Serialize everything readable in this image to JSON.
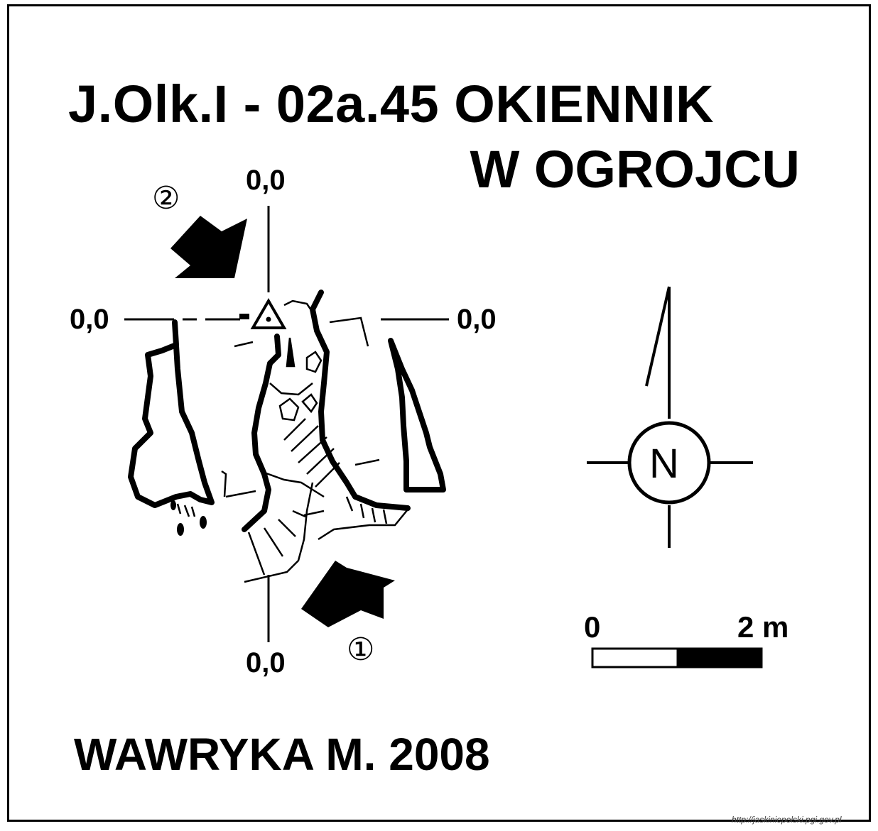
{
  "title": {
    "line1": "J.Olk.I - 02a.45  OKIENNIK",
    "line2": "W OGROJCU"
  },
  "coordinates": {
    "top": "0,0",
    "left": "0,0",
    "right": "0,0",
    "bottom": "0,0"
  },
  "entrances": {
    "entrance_1": "①",
    "entrance_2": "②"
  },
  "north_arrow": {
    "label": "N"
  },
  "scale_bar": {
    "start_label": "0",
    "end_label": "2 m"
  },
  "author": "WAWRYKA M. 2008",
  "credit": "http://jaskiniepolski.pgi.gov.pl",
  "colors": {
    "ink": "#000000",
    "paper": "#ffffff"
  }
}
